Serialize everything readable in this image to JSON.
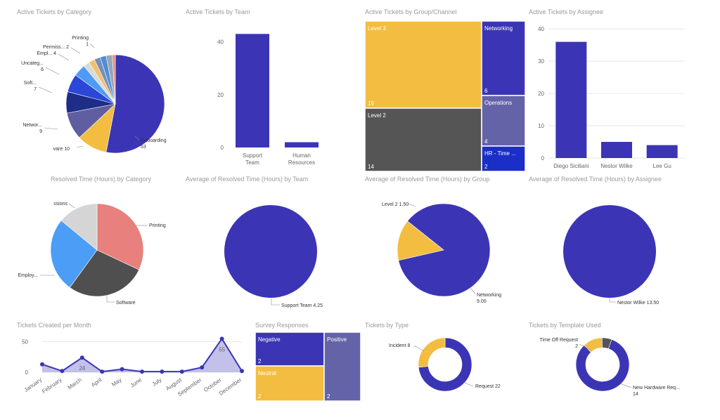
{
  "titles": {
    "cat": "Active Tickets by Category",
    "team": "Active Tickets by Team",
    "group": "Active Tickets by Group/Channel",
    "assignee": "Active Tickets by Assignee",
    "rcat": "Resolved Time (Hours) by Category",
    "rteam": "Average of Resolved Time (Hours) by Team",
    "rgroup": "Average of Resolved Time (Hours) by Group",
    "rassignee": "Average of Resolved Time (Hours) by Assignee",
    "month": "Tickets Created per Month",
    "survey": "Survey Responses",
    "type": "Tickets by Type",
    "template": "Tickets by Template Used"
  },
  "chart_data": [
    {
      "id": "cat",
      "type": "pie",
      "title": "Active Tickets by Category",
      "slices": [
        {
          "label": "Onboarding",
          "value": 53,
          "color": "#3b35b5",
          "text": "Onboarding\n53"
        },
        {
          "label": "Software",
          "value": 10,
          "color": "#f3bd41",
          "text": "vare 10"
        },
        {
          "label": "Networking",
          "value": 9,
          "color": "#5e5ea1",
          "text": "Networ...\n9"
        },
        {
          "label": "Software",
          "value": 7,
          "color": "#1e2d86",
          "text": "Soft...\n7"
        },
        {
          "label": "Uncategorized",
          "value": 6,
          "color": "#2a47d8",
          "text": "Uncateg...\n6"
        },
        {
          "label": "Employee",
          "value": 4,
          "color": "#4e9bf5",
          "text": "Empl... 4"
        },
        {
          "label": "Permissions",
          "value": 2,
          "color": "#d9d9d9",
          "text": "Permiss... 2"
        },
        {
          "label": "Other",
          "value": 2,
          "color": "#f0c070",
          "text": ""
        },
        {
          "label": "Other",
          "value": 2,
          "color": "#7a8fb5",
          "text": ""
        },
        {
          "label": "Other",
          "value": 2,
          "color": "#4d8fd6",
          "text": ""
        },
        {
          "label": "Other",
          "value": 2,
          "color": "#9aa4b8",
          "text": ""
        },
        {
          "label": "Printing",
          "value": 1,
          "color": "#e88a84",
          "text": "Printing\n1"
        }
      ]
    },
    {
      "id": "team",
      "type": "bar",
      "title": "Active Tickets by Team",
      "categories": [
        "Support Team",
        "Human Resources"
      ],
      "values": [
        43,
        2
      ],
      "yticks": [
        0,
        20,
        40
      ],
      "ylim": [
        0,
        50
      ],
      "color": "#3b35b5"
    },
    {
      "id": "group",
      "type": "treemap",
      "title": "Active Tickets by Group/Channel",
      "items": [
        {
          "label": "Level 3",
          "value": 19,
          "color": "#f3bd41"
        },
        {
          "label": "Level 2",
          "value": 14,
          "color": "#555555"
        },
        {
          "label": "Networking",
          "value": 6,
          "color": "#3b35b5"
        },
        {
          "label": "Operations",
          "value": 4,
          "color": "#6563a8"
        },
        {
          "label": "HR - Time ...",
          "value": 2,
          "color": "#1b2ec8"
        }
      ]
    },
    {
      "id": "assignee",
      "type": "bar",
      "title": "Active Tickets by Assignee",
      "categories": [
        "Diego Siciliani",
        "Nestor Wilke",
        "Lee Gu"
      ],
      "values": [
        36,
        5,
        4
      ],
      "yticks": [
        0,
        10,
        20,
        30,
        40
      ],
      "ylim": [
        0,
        42
      ],
      "color": "#3b35b5"
    },
    {
      "id": "rcat",
      "type": "pie",
      "title": "Resolved Time (Hours) by Category",
      "slices": [
        {
          "label": "Printing",
          "value": 32,
          "color": "#e8807d",
          "text": "Printing"
        },
        {
          "label": "Software",
          "value": 28,
          "color": "#4f4f4f",
          "text": "Software"
        },
        {
          "label": "Employee",
          "value": 26,
          "color": "#4b9df6",
          "text": "Employ..."
        },
        {
          "label": "Permissions",
          "value": 14,
          "color": "#d5d5d5",
          "text": "ssions"
        }
      ]
    },
    {
      "id": "rteam",
      "type": "pie",
      "title": "Average of Resolved Time (Hours) by Team",
      "slices": [
        {
          "label": "Support Team",
          "value": 4.25,
          "color": "#3b35b5",
          "text": "Support Team 4.25"
        }
      ]
    },
    {
      "id": "rgroup",
      "type": "pie",
      "title": "Average of Resolved Time (Hours) by Group",
      "slices": [
        {
          "label": "Networking",
          "value": 9.0,
          "color": "#3b35b5",
          "text": "Networking\n9.00"
        },
        {
          "label": "Level 2",
          "value": 1.5,
          "color": "#f3bd41",
          "text": "Level 2 1.50"
        }
      ]
    },
    {
      "id": "rassignee",
      "type": "pie",
      "title": "Average of Resolved Time (Hours) by Assignee",
      "slices": [
        {
          "label": "Nestor Wilke",
          "value": 13.5,
          "color": "#3b35b5",
          "text": "Nestor Wilke 13.50"
        }
      ]
    },
    {
      "id": "month",
      "type": "area",
      "title": "Tickets Created per Month",
      "categories": [
        "January",
        "February",
        "March",
        "April",
        "May",
        "June",
        "July",
        "August",
        "September",
        "October",
        "December"
      ],
      "values": [
        13,
        2,
        24,
        1,
        5,
        1,
        1,
        1,
        8,
        55,
        2
      ],
      "point_labels": {
        "2": "24",
        "9": "55"
      },
      "yticks": [
        0,
        50
      ],
      "ylim": [
        0,
        60
      ],
      "color": "#3b35b5"
    },
    {
      "id": "survey",
      "type": "treemap",
      "title": "Survey Responses",
      "items": [
        {
          "label": "Negative",
          "value": 2,
          "color": "#3b35b5"
        },
        {
          "label": "Neutral",
          "value": 2,
          "color": "#f3bd41"
        },
        {
          "label": "Positive",
          "value": 2,
          "color": "#6563a8"
        }
      ]
    },
    {
      "id": "type",
      "type": "donut",
      "title": "Tickets by Type",
      "slices": [
        {
          "label": "Request",
          "value": 22,
          "color": "#3b35b5",
          "text": "Request 22"
        },
        {
          "label": "Incident",
          "value": 8,
          "color": "#f3bd41",
          "text": "Incident 8"
        }
      ]
    },
    {
      "id": "template",
      "type": "donut",
      "title": "Tickets by Template Used",
      "slices": [
        {
          "label": "New Hardware Req...",
          "value": 14,
          "color": "#3b35b5",
          "text": "New Hardware Req...\n14"
        },
        {
          "label": "Time Off Request",
          "value": 2,
          "color": "#f3bd41",
          "text": "Time Off Request\n2"
        },
        {
          "label": "Other",
          "value": 1,
          "color": "#555555",
          "text": ""
        }
      ]
    }
  ]
}
